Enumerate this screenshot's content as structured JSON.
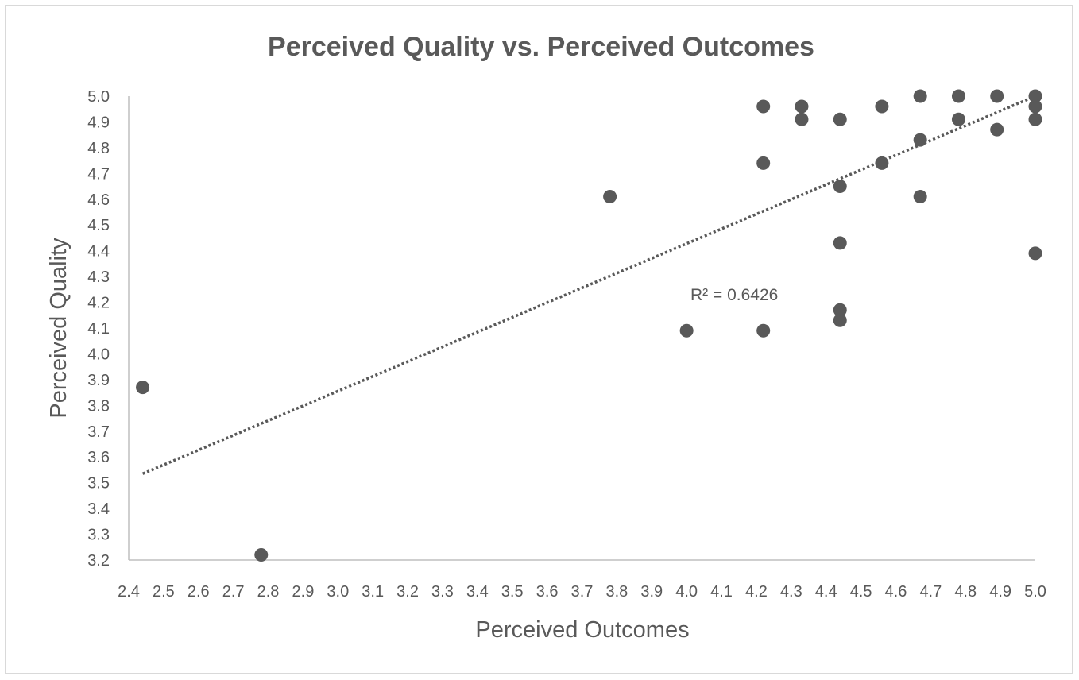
{
  "chart_data": {
    "type": "scatter",
    "title": "Perceived Quality vs. Perceived Outcomes",
    "xlabel": "Perceived Outcomes",
    "ylabel": "Perceived  Quality",
    "xlim": [
      2.4,
      5.0
    ],
    "ylim": [
      3.2,
      5.0
    ],
    "xticks": [
      "2.4",
      "2.5",
      "2.6",
      "2.7",
      "2.8",
      "2.9",
      "3.0",
      "3.1",
      "3.2",
      "3.3",
      "3.4",
      "3.5",
      "3.6",
      "3.7",
      "3.8",
      "3.9",
      "4.0",
      "4.1",
      "4.2",
      "4.3",
      "4.4",
      "4.5",
      "4.6",
      "4.7",
      "4.8",
      "4.9",
      "5.0"
    ],
    "yticks": [
      "3.2",
      "3.3",
      "3.4",
      "3.5",
      "3.6",
      "3.7",
      "3.8",
      "3.9",
      "4.0",
      "4.1",
      "4.2",
      "4.3",
      "4.4",
      "4.5",
      "4.6",
      "4.7",
      "4.8",
      "4.9",
      "5.0"
    ],
    "grid": false,
    "marker_color": "#595959",
    "points": [
      {
        "x": 2.44,
        "y": 3.87
      },
      {
        "x": 2.78,
        "y": 3.22
      },
      {
        "x": 3.78,
        "y": 4.61
      },
      {
        "x": 4.0,
        "y": 4.09
      },
      {
        "x": 4.22,
        "y": 4.09
      },
      {
        "x": 4.22,
        "y": 4.74
      },
      {
        "x": 4.22,
        "y": 4.96
      },
      {
        "x": 4.33,
        "y": 4.96
      },
      {
        "x": 4.33,
        "y": 4.91
      },
      {
        "x": 4.44,
        "y": 4.91
      },
      {
        "x": 4.44,
        "y": 4.65
      },
      {
        "x": 4.44,
        "y": 4.43
      },
      {
        "x": 4.44,
        "y": 4.17
      },
      {
        "x": 4.44,
        "y": 4.13
      },
      {
        "x": 4.56,
        "y": 4.96
      },
      {
        "x": 4.56,
        "y": 4.74
      },
      {
        "x": 4.67,
        "y": 5.0
      },
      {
        "x": 4.67,
        "y": 4.83
      },
      {
        "x": 4.67,
        "y": 4.61
      },
      {
        "x": 4.78,
        "y": 5.0
      },
      {
        "x": 4.78,
        "y": 4.91
      },
      {
        "x": 4.89,
        "y": 5.0
      },
      {
        "x": 4.89,
        "y": 4.87
      },
      {
        "x": 5.0,
        "y": 5.0
      },
      {
        "x": 5.0,
        "y": 4.96
      },
      {
        "x": 5.0,
        "y": 4.91
      },
      {
        "x": 5.0,
        "y": 4.39
      }
    ],
    "trendline": {
      "type": "linear",
      "style": "dotted",
      "x": [
        2.44,
        5.0
      ],
      "y": [
        3.535,
        5.0
      ],
      "label": "R² = 0.6426"
    }
  }
}
